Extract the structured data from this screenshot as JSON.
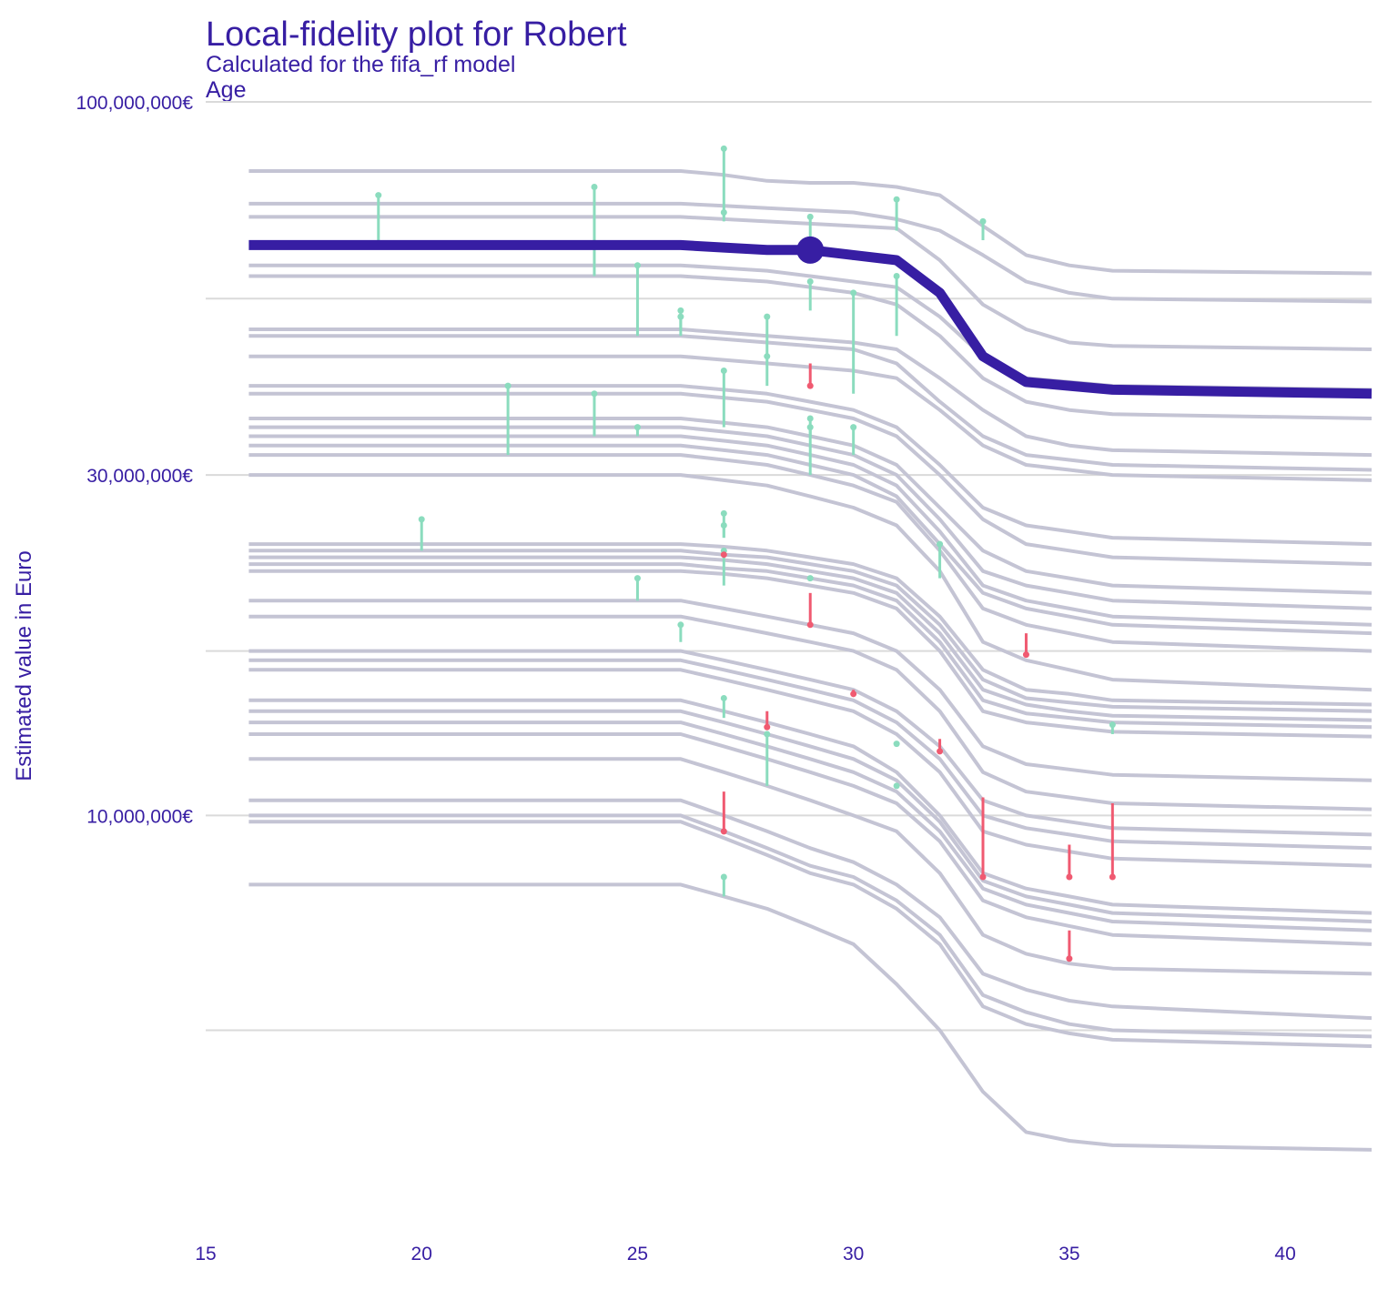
{
  "chart_data": {
    "type": "line",
    "title": "Local-fidelity plot for Robert",
    "subtitle": "Calculated for the fifa_rf model",
    "variable": "Age",
    "ylabel": "Estimated value in Euro",
    "xlabel": "",
    "y_scale": "log10",
    "xlim": [
      15,
      42
    ],
    "ylim": [
      2800000,
      100000000
    ],
    "x_ticks": [
      15,
      20,
      25,
      30,
      35,
      40
    ],
    "x_tick_labels": [
      "15",
      "20",
      "25",
      "30",
      "35",
      "40"
    ],
    "y_gridlines": [
      5000000,
      10000000,
      17000000,
      30000000,
      53000000,
      100000000
    ],
    "y_ticks": [
      10000000,
      30000000,
      100000000
    ],
    "y_tick_labels": [
      "10,000,000€",
      "30,000,000€",
      "100,000,000€"
    ],
    "grid": true,
    "legend": "none",
    "colors": {
      "title": "#371ea3",
      "main_profile": "#371ea3",
      "neighbor_profiles": "#c4c4d4",
      "positive_residual": "#8bdcbe",
      "negative_residual": "#f05a71",
      "gridline": "#dadada"
    },
    "ages": [
      16,
      18,
      20,
      22,
      23,
      24,
      26,
      27,
      28,
      29,
      30,
      31,
      32,
      33,
      34,
      35,
      36,
      42
    ],
    "main_profile": {
      "values": [
        63,
        63,
        63,
        63,
        63,
        63,
        63,
        62.5,
        62,
        62,
        61,
        60,
        54,
        44,
        40.5,
        40,
        39.5,
        39
      ],
      "observation": {
        "age": 29,
        "value": 62
      }
    },
    "neighbor_profiles": [
      {
        "age": 29,
        "values": [
          69,
          69,
          69,
          69,
          69,
          69,
          69,
          68.5,
          68,
          67.5,
          67,
          66.5,
          60,
          52,
          48,
          46,
          45.5,
          45
        ]
      },
      {
        "age": 31,
        "values": [
          72,
          72,
          72,
          72,
          72,
          72,
          72,
          71.5,
          71,
          70.5,
          70,
          68.5,
          66,
          61,
          56,
          54,
          53,
          52.5
        ]
      },
      {
        "age": 19,
        "values": [
          80,
          80,
          80,
          80,
          80,
          80,
          80,
          79,
          77.5,
          77,
          77,
          76,
          74,
          67,
          61,
          59,
          58,
          57.5
        ]
      },
      {
        "age": 25,
        "values": [
          59,
          59,
          59,
          59,
          59,
          59,
          59,
          58.5,
          58,
          57,
          56,
          55,
          50,
          44,
          41,
          40.5,
          40,
          39.5
        ]
      },
      {
        "age": 24,
        "values": [
          57,
          57,
          57,
          57,
          57,
          57,
          57,
          56.5,
          56,
          55,
          54,
          52,
          47,
          41,
          38,
          37,
          36.5,
          36
        ]
      },
      {
        "age": 30,
        "values": [
          48,
          48,
          48,
          48,
          48,
          48,
          48,
          47.5,
          47,
          46.5,
          46,
          45,
          41,
          37,
          34,
          33,
          32.5,
          32
        ]
      },
      {
        "age": 26,
        "values": [
          47,
          47,
          47,
          47,
          47,
          47,
          47,
          46.5,
          46,
          45.5,
          45,
          43,
          38,
          34,
          32,
          31.5,
          31,
          30.5
        ]
      },
      {
        "age": 28,
        "values": [
          44,
          44,
          44,
          44,
          44,
          44,
          44,
          43.5,
          43,
          42.5,
          42,
          41,
          37,
          33,
          31,
          30.5,
          30,
          29.5
        ]
      },
      {
        "age": 27,
        "values": [
          40,
          40,
          40,
          40,
          40,
          40,
          40,
          39.5,
          39,
          38,
          37,
          35,
          31,
          27,
          25.5,
          25,
          24.5,
          24
        ]
      },
      {
        "age": 22,
        "values": [
          39,
          39,
          39,
          39,
          39,
          39,
          39,
          38.5,
          38,
          37,
          36,
          34,
          30,
          26,
          24,
          23.5,
          23,
          22.5
        ]
      },
      {
        "age": 24,
        "values": [
          36,
          36,
          36,
          36,
          36,
          36,
          36,
          35.5,
          35,
          34,
          33,
          31,
          27,
          23.5,
          22,
          21.5,
          21,
          20.5
        ]
      },
      {
        "age": 29,
        "values": [
          35,
          35,
          35,
          35,
          35,
          35,
          35,
          34.5,
          34,
          33,
          32,
          30,
          26,
          22,
          21,
          20.5,
          20,
          19.5
        ]
      },
      {
        "age": 30,
        "values": [
          34,
          34,
          34,
          34,
          34,
          34,
          34,
          33.5,
          33,
          32,
          31,
          29,
          25,
          21,
          20,
          19.5,
          19,
          18.5
        ]
      },
      {
        "age": 20,
        "values": [
          33,
          33,
          33,
          33,
          33,
          33,
          33,
          32.5,
          32,
          31,
          30,
          28,
          24,
          20.5,
          19.5,
          19,
          18.5,
          18
        ]
      },
      {
        "age": 25,
        "values": [
          32,
          32,
          32,
          32,
          32,
          32,
          32,
          31.5,
          31,
          30,
          29,
          27.5,
          23.5,
          19.5,
          18.5,
          18,
          17.5,
          17
        ]
      },
      {
        "age": 27,
        "values": [
          30,
          30,
          30,
          30,
          30,
          30,
          30,
          29.5,
          29,
          28,
          27,
          25.5,
          22,
          17.5,
          16.5,
          16,
          15.5,
          15
        ]
      },
      {
        "age": 32,
        "values": [
          24,
          24,
          24,
          24,
          24,
          24,
          24,
          23.8,
          23.5,
          23,
          22.5,
          21.5,
          19,
          16,
          15,
          14.8,
          14.5,
          14.3
        ]
      },
      {
        "age": 27,
        "values": [
          23.5,
          23.5,
          23.5,
          23.5,
          23.5,
          23.5,
          23.5,
          23.2,
          23,
          22.5,
          22,
          21,
          18.5,
          15.5,
          14.6,
          14.4,
          14.2,
          14
        ]
      },
      {
        "age": 29,
        "values": [
          23,
          23,
          23,
          23,
          23,
          23,
          23,
          22.8,
          22.5,
          22,
          21.5,
          20.5,
          18,
          15,
          14.3,
          14,
          13.8,
          13.6
        ]
      },
      {
        "age": 33,
        "values": [
          22.5,
          22.5,
          22.5,
          22.5,
          22.5,
          22.5,
          22.5,
          22.2,
          22,
          21.5,
          21,
          20,
          17.5,
          14.5,
          13.9,
          13.7,
          13.5,
          13.3
        ]
      },
      {
        "age": 26,
        "values": [
          22,
          22,
          22,
          22,
          22,
          22,
          22,
          21.8,
          21.5,
          21,
          20.5,
          19.5,
          17,
          14,
          13.5,
          13.3,
          13.1,
          12.9
        ]
      },
      {
        "age": 28,
        "values": [
          20,
          20,
          20,
          20,
          20,
          20,
          20,
          19.5,
          19,
          18.5,
          18,
          17,
          15,
          12.5,
          11.8,
          11.6,
          11.4,
          11.2
        ]
      },
      {
        "age": 27,
        "values": [
          19,
          19,
          19,
          19,
          19,
          19,
          19,
          18.5,
          18,
          17.5,
          17,
          16,
          14,
          11.5,
          10.8,
          10.6,
          10.4,
          10.2
        ]
      },
      {
        "age": 31,
        "values": [
          17,
          17,
          17,
          17,
          17,
          17,
          17,
          16.5,
          16,
          15.5,
          15,
          14,
          12.5,
          10.5,
          10,
          9.8,
          9.6,
          9.4
        ]
      },
      {
        "age": 28,
        "values": [
          16.5,
          16.5,
          16.5,
          16.5,
          16.5,
          16.5,
          16.5,
          16,
          15.5,
          15,
          14.5,
          13.5,
          12,
          10,
          9.6,
          9.4,
          9.2,
          9
        ]
      },
      {
        "age": 36,
        "values": [
          16,
          16,
          16,
          16,
          16,
          16,
          16,
          15.5,
          15,
          14.5,
          14,
          13,
          11.5,
          9.5,
          9.1,
          8.9,
          8.7,
          8.5
        ]
      },
      {
        "age": 34,
        "values": [
          14.5,
          14.5,
          14.5,
          14.5,
          14.5,
          14.5,
          14.5,
          14,
          13.5,
          13,
          12.5,
          11.5,
          10,
          8.3,
          7.9,
          7.7,
          7.5,
          7.3
        ]
      },
      {
        "age": 32,
        "values": [
          14,
          14,
          14,
          14,
          14,
          14,
          14,
          13.5,
          13,
          12.5,
          12,
          11.2,
          9.8,
          8.1,
          7.7,
          7.5,
          7.3,
          7.1
        ]
      },
      {
        "age": 35,
        "values": [
          13.5,
          13.5,
          13.5,
          13.5,
          13.5,
          13.5,
          13.5,
          13,
          12.5,
          12,
          11.5,
          10.8,
          9.5,
          7.9,
          7.5,
          7.3,
          7.1,
          6.9
        ]
      },
      {
        "age": 33,
        "values": [
          13,
          13,
          13,
          13,
          13,
          13,
          13,
          12.5,
          12,
          11.5,
          11,
          10.4,
          9.2,
          7.6,
          7.2,
          7,
          6.8,
          6.6
        ]
      },
      {
        "age": 36,
        "values": [
          12,
          12,
          12,
          12,
          12,
          12,
          12,
          11.5,
          11,
          10.5,
          10,
          9.5,
          8.3,
          6.8,
          6.4,
          6.2,
          6.1,
          6
        ]
      },
      {
        "age": 27,
        "values": [
          10.5,
          10.5,
          10.5,
          10.5,
          10.5,
          10.5,
          10.5,
          10,
          9.5,
          9,
          8.6,
          8,
          7.2,
          6,
          5.7,
          5.5,
          5.4,
          5.2
        ]
      },
      {
        "age": 35,
        "values": [
          10,
          10,
          10,
          10,
          10,
          10,
          10,
          9.5,
          9,
          8.5,
          8.2,
          7.6,
          6.8,
          5.6,
          5.3,
          5.1,
          5,
          4.9
        ]
      },
      {
        "age": 33,
        "values": [
          9.8,
          9.8,
          9.8,
          9.8,
          9.8,
          9.8,
          9.8,
          9.3,
          8.8,
          8.3,
          8,
          7.4,
          6.6,
          5.4,
          5.1,
          4.95,
          4.85,
          4.75
        ]
      },
      {
        "age": 27,
        "values": [
          8,
          8,
          8,
          8,
          8,
          8,
          8,
          7.7,
          7.4,
          7,
          6.6,
          5.8,
          5,
          4.1,
          3.6,
          3.5,
          3.45,
          3.4
        ]
      }
    ],
    "residuals": [
      {
        "age": 19,
        "observed": 74,
        "predicted": 63,
        "sign": "positive"
      },
      {
        "age": 24,
        "observed": 76,
        "predicted": 57,
        "sign": "positive"
      },
      {
        "age": 25,
        "observed": 59,
        "predicted": 47,
        "sign": "positive"
      },
      {
        "age": 26,
        "observed": 51,
        "predicted": 48,
        "sign": "positive"
      },
      {
        "age": 26,
        "observed": 50,
        "predicted": 47,
        "sign": "positive"
      },
      {
        "age": 27,
        "observed": 86,
        "predicted": 69,
        "sign": "positive"
      },
      {
        "age": 27,
        "observed": 70,
        "predicted": 68,
        "sign": "positive"
      },
      {
        "age": 28,
        "observed": 50,
        "predicted": 44,
        "sign": "positive"
      },
      {
        "age": 28,
        "observed": 44,
        "predicted": 40,
        "sign": "positive"
      },
      {
        "age": 29,
        "observed": 69,
        "predicted": 62,
        "sign": "positive"
      },
      {
        "age": 29,
        "observed": 56,
        "predicted": 51,
        "sign": "positive"
      },
      {
        "age": 29,
        "observed": 40,
        "predicted": 43,
        "sign": "negative"
      },
      {
        "age": 30,
        "observed": 61,
        "predicted": 60,
        "sign": "positive"
      },
      {
        "age": 30,
        "observed": 54,
        "predicted": 39,
        "sign": "positive"
      },
      {
        "age": 31,
        "observed": 73,
        "predicted": 66,
        "sign": "positive"
      },
      {
        "age": 31,
        "observed": 57,
        "predicted": 47,
        "sign": "positive"
      },
      {
        "age": 33,
        "observed": 68,
        "predicted": 64,
        "sign": "positive"
      },
      {
        "age": 22,
        "observed": 40,
        "predicted": 32,
        "sign": "positive"
      },
      {
        "age": 24,
        "observed": 39,
        "predicted": 34,
        "sign": "positive"
      },
      {
        "age": 25,
        "observed": 35,
        "predicted": 34,
        "sign": "positive"
      },
      {
        "age": 27,
        "observed": 42,
        "predicted": 35,
        "sign": "positive"
      },
      {
        "age": 29,
        "observed": 36,
        "predicted": 30,
        "sign": "positive"
      },
      {
        "age": 29,
        "observed": 35,
        "predicted": 34,
        "sign": "positive"
      },
      {
        "age": 30,
        "observed": 35,
        "predicted": 32,
        "sign": "positive"
      },
      {
        "age": 20,
        "observed": 26,
        "predicted": 23.5,
        "sign": "positive"
      },
      {
        "age": 27,
        "observed": 26.5,
        "predicted": 24.5,
        "sign": "positive"
      },
      {
        "age": 27,
        "observed": 25.5,
        "predicted": 24.5,
        "sign": "positive"
      },
      {
        "age": 27,
        "observed": 23.5,
        "predicted": 21,
        "sign": "positive"
      },
      {
        "age": 27,
        "observed": 23.2,
        "predicted": 23.4,
        "sign": "negative"
      },
      {
        "age": 25,
        "observed": 21.5,
        "predicted": 20,
        "sign": "positive"
      },
      {
        "age": 26,
        "observed": 18.5,
        "predicted": 17.5,
        "sign": "positive"
      },
      {
        "age": 29,
        "observed": 21.5,
        "predicted": 21.5,
        "sign": "positive"
      },
      {
        "age": 29,
        "observed": 18.5,
        "predicted": 20.5,
        "sign": "negative"
      },
      {
        "age": 32,
        "observed": 24,
        "predicted": 21.5,
        "sign": "positive"
      },
      {
        "age": 34,
        "observed": 16.8,
        "predicted": 18,
        "sign": "negative"
      },
      {
        "age": 30,
        "observed": 14.8,
        "predicted": 15,
        "sign": "negative"
      },
      {
        "age": 27,
        "observed": 14.6,
        "predicted": 13.7,
        "sign": "positive"
      },
      {
        "age": 28,
        "observed": 13.3,
        "predicted": 14,
        "sign": "negative"
      },
      {
        "age": 28,
        "observed": 13,
        "predicted": 11,
        "sign": "positive"
      },
      {
        "age": 31,
        "observed": 12.6,
        "predicted": 12.6,
        "sign": "positive"
      },
      {
        "age": 32,
        "observed": 12.3,
        "predicted": 12.8,
        "sign": "negative"
      },
      {
        "age": 36,
        "observed": 13.4,
        "predicted": 13,
        "sign": "positive"
      },
      {
        "age": 31,
        "observed": 11,
        "predicted": 11,
        "sign": "positive"
      },
      {
        "age": 27,
        "observed": 9.5,
        "predicted": 10.8,
        "sign": "negative"
      },
      {
        "age": 33,
        "observed": 8.2,
        "predicted": 10.6,
        "sign": "negative"
      },
      {
        "age": 35,
        "observed": 8.2,
        "predicted": 9.1,
        "sign": "negative"
      },
      {
        "age": 36,
        "observed": 8.2,
        "predicted": 10.4,
        "sign": "negative"
      },
      {
        "age": 27,
        "observed": 8.2,
        "predicted": 7.7,
        "sign": "positive"
      },
      {
        "age": 35,
        "observed": 6.3,
        "predicted": 6.9,
        "sign": "negative"
      }
    ]
  }
}
